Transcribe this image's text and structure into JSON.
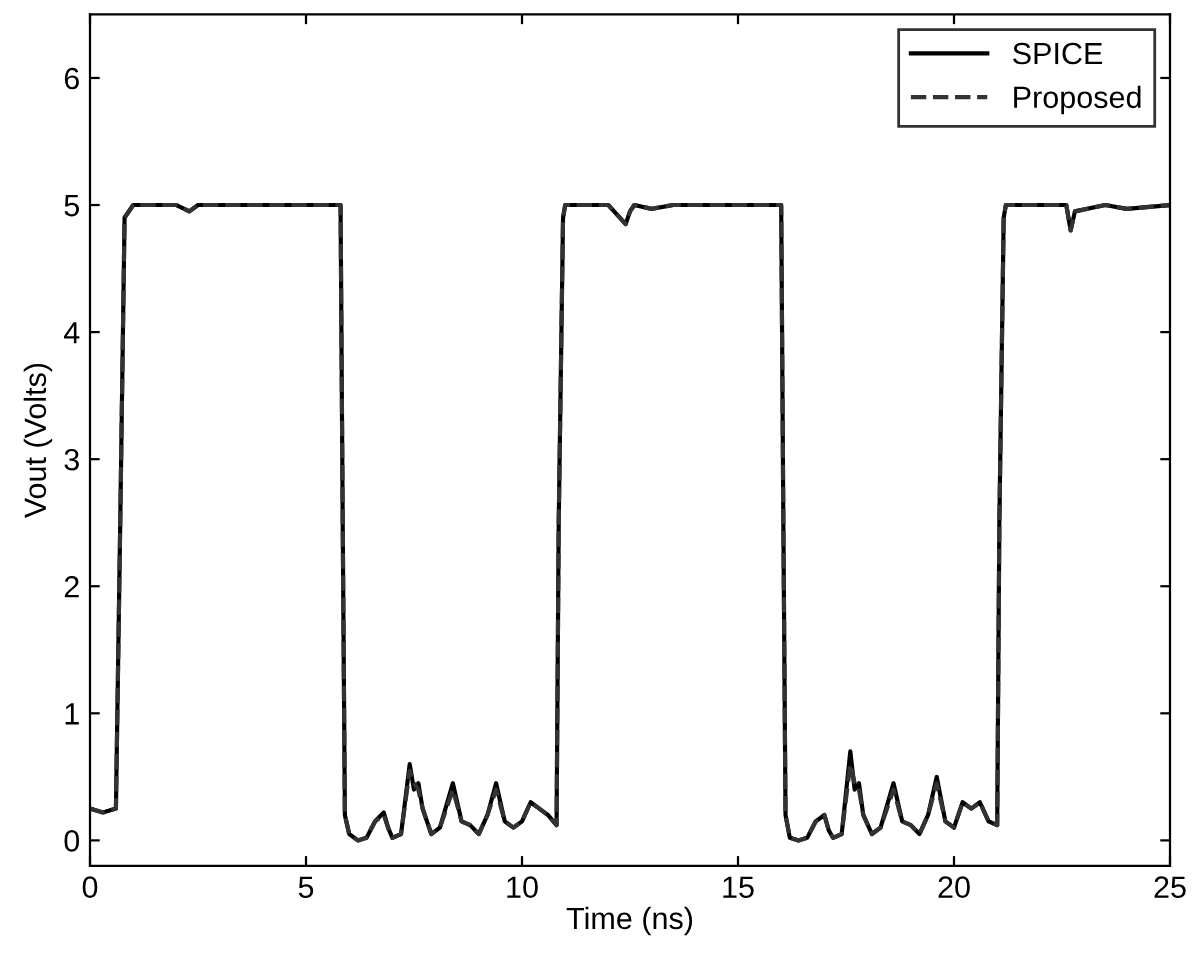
{
  "chart_data": {
    "type": "line",
    "xlabel": "Time (ns)",
    "ylabel": "Vout (Volts)",
    "xlim": [
      0,
      25
    ],
    "ylim": [
      -0.2,
      6.5
    ],
    "xticks": [
      0,
      5,
      10,
      15,
      20,
      25
    ],
    "yticks": [
      0,
      1,
      2,
      3,
      4,
      5,
      6
    ],
    "grid": false,
    "legend": "top right",
    "series": [
      {
        "name": "SPICE",
        "color": "#000000",
        "line_style": "solid",
        "x": [
          0,
          0.3,
          0.6,
          0.7,
          0.8,
          1.0,
          2.0,
          2.3,
          2.5,
          3.0,
          5.8,
          5.85,
          5.9,
          6.0,
          6.2,
          6.4,
          6.6,
          6.8,
          6.9,
          7.0,
          7.2,
          7.4,
          7.5,
          7.6,
          7.7,
          7.9,
          8.1,
          8.4,
          8.6,
          8.8,
          9.0,
          9.2,
          9.4,
          9.6,
          9.8,
          10.0,
          10.2,
          10.4,
          10.6,
          10.8,
          10.85,
          10.95,
          11.0,
          12.0,
          12.4,
          12.5,
          12.6,
          13.0,
          13.5,
          14.0,
          16.0,
          16.05,
          16.1,
          16.2,
          16.4,
          16.6,
          16.8,
          17.0,
          17.1,
          17.2,
          17.4,
          17.6,
          17.7,
          17.8,
          17.9,
          18.1,
          18.3,
          18.6,
          18.8,
          19.0,
          19.2,
          19.4,
          19.6,
          19.8,
          20.0,
          20.2,
          20.4,
          20.6,
          20.8,
          21.0,
          21.05,
          21.15,
          21.2,
          22.0,
          22.6,
          22.7,
          22.8,
          23.5,
          24.0,
          25.0
        ],
        "values": [
          0.25,
          0.22,
          0.25,
          2.5,
          4.9,
          5,
          5,
          4.95,
          5,
          5,
          5,
          2.5,
          0.2,
          0.05,
          0,
          0.02,
          0.15,
          0.22,
          0.1,
          0.02,
          0.05,
          0.6,
          0.4,
          0.45,
          0.25,
          0.05,
          0.1,
          0.45,
          0.15,
          0.12,
          0.05,
          0.2,
          0.45,
          0.15,
          0.1,
          0.15,
          0.3,
          0.25,
          0.2,
          0.12,
          2.5,
          4.9,
          5,
          5,
          4.85,
          4.95,
          5,
          4.97,
          5,
          5,
          5,
          2.5,
          0.2,
          0.02,
          0,
          0.02,
          0.15,
          0.2,
          0.08,
          0.02,
          0.05,
          0.7,
          0.4,
          0.45,
          0.2,
          0.05,
          0.1,
          0.45,
          0.15,
          0.12,
          0.05,
          0.2,
          0.5,
          0.15,
          0.1,
          0.3,
          0.25,
          0.3,
          0.15,
          0.12,
          2.5,
          4.9,
          5,
          5,
          5,
          4.8,
          4.95,
          5,
          4.97,
          5
        ]
      },
      {
        "name": "Proposed",
        "color": "#333333",
        "line_style": "dashed",
        "x": [
          0,
          0.3,
          0.6,
          0.7,
          0.8,
          1.0,
          2.0,
          2.3,
          2.5,
          3.0,
          5.8,
          5.85,
          5.9,
          6.0,
          6.2,
          6.4,
          6.6,
          6.8,
          6.9,
          7.0,
          7.2,
          7.4,
          7.5,
          7.6,
          7.7,
          7.9,
          8.1,
          8.4,
          8.6,
          8.8,
          9.0,
          9.2,
          9.4,
          9.6,
          9.8,
          10.0,
          10.2,
          10.4,
          10.6,
          10.8,
          10.85,
          10.95,
          11.0,
          12.0,
          12.4,
          12.5,
          12.6,
          13.0,
          13.5,
          14.0,
          16.0,
          16.05,
          16.1,
          16.2,
          16.4,
          16.6,
          16.8,
          17.0,
          17.1,
          17.2,
          17.4,
          17.6,
          17.7,
          17.8,
          17.9,
          18.1,
          18.3,
          18.6,
          18.8,
          19.0,
          19.2,
          19.4,
          19.6,
          19.8,
          20.0,
          20.2,
          20.4,
          20.6,
          20.8,
          21.0,
          21.05,
          21.15,
          21.2,
          22.0,
          22.6,
          22.7,
          22.8,
          23.5,
          24.0,
          25.0
        ],
        "values": [
          0.25,
          0.22,
          0.25,
          2.5,
          4.9,
          5,
          5,
          4.95,
          5,
          5,
          5,
          2.5,
          0.2,
          0.05,
          0,
          0.02,
          0.15,
          0.2,
          0.1,
          0.02,
          0.05,
          0.55,
          0.45,
          0.4,
          0.25,
          0.05,
          0.1,
          0.4,
          0.15,
          0.12,
          0.05,
          0.2,
          0.4,
          0.15,
          0.1,
          0.15,
          0.3,
          0.25,
          0.2,
          0.12,
          2.5,
          4.9,
          5,
          5,
          4.85,
          4.95,
          5,
          4.97,
          5,
          5,
          5,
          2.5,
          0.2,
          0.02,
          0,
          0.02,
          0.15,
          0.2,
          0.08,
          0.02,
          0.05,
          0.6,
          0.45,
          0.4,
          0.2,
          0.05,
          0.1,
          0.4,
          0.15,
          0.12,
          0.05,
          0.2,
          0.45,
          0.15,
          0.1,
          0.3,
          0.25,
          0.3,
          0.15,
          0.12,
          2.5,
          4.9,
          5,
          5,
          5,
          4.8,
          4.95,
          5,
          4.97,
          5
        ]
      }
    ]
  }
}
